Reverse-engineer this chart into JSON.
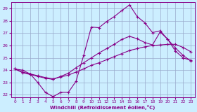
{
  "xlabel": "Windchill (Refroidissement éolien,°C)",
  "xlim": [
    -0.5,
    23.5
  ],
  "ylim": [
    21.8,
    29.5
  ],
  "yticks": [
    22,
    23,
    24,
    25,
    26,
    27,
    28,
    29
  ],
  "xticks": [
    0,
    1,
    2,
    3,
    4,
    5,
    6,
    7,
    8,
    9,
    10,
    11,
    12,
    13,
    14,
    15,
    16,
    17,
    18,
    19,
    20,
    21,
    22,
    23
  ],
  "background_color": "#cceeff",
  "line_color": "#880088",
  "grid_color": "#99aacc",
  "line1_y": [
    24.1,
    24.0,
    23.7,
    23.0,
    22.2,
    21.85,
    22.2,
    22.2,
    23.1,
    25.2,
    27.5,
    27.45,
    27.95,
    28.35,
    28.85,
    29.3,
    28.35,
    27.85,
    27.05,
    27.2,
    26.5,
    25.55,
    25.0,
    24.8
  ],
  "line2_y": [
    24.1,
    23.85,
    23.7,
    23.55,
    23.4,
    23.3,
    23.45,
    23.6,
    23.85,
    24.1,
    24.4,
    24.6,
    24.85,
    25.1,
    25.35,
    25.6,
    25.75,
    25.9,
    26.0,
    26.05,
    26.1,
    26.1,
    25.85,
    25.5
  ],
  "line3_y": [
    24.1,
    23.8,
    23.65,
    23.5,
    23.35,
    23.25,
    23.5,
    23.75,
    24.2,
    24.6,
    25.0,
    25.4,
    25.75,
    26.1,
    26.5,
    26.75,
    26.55,
    26.25,
    26.05,
    27.1,
    26.5,
    25.8,
    25.2,
    24.75
  ]
}
